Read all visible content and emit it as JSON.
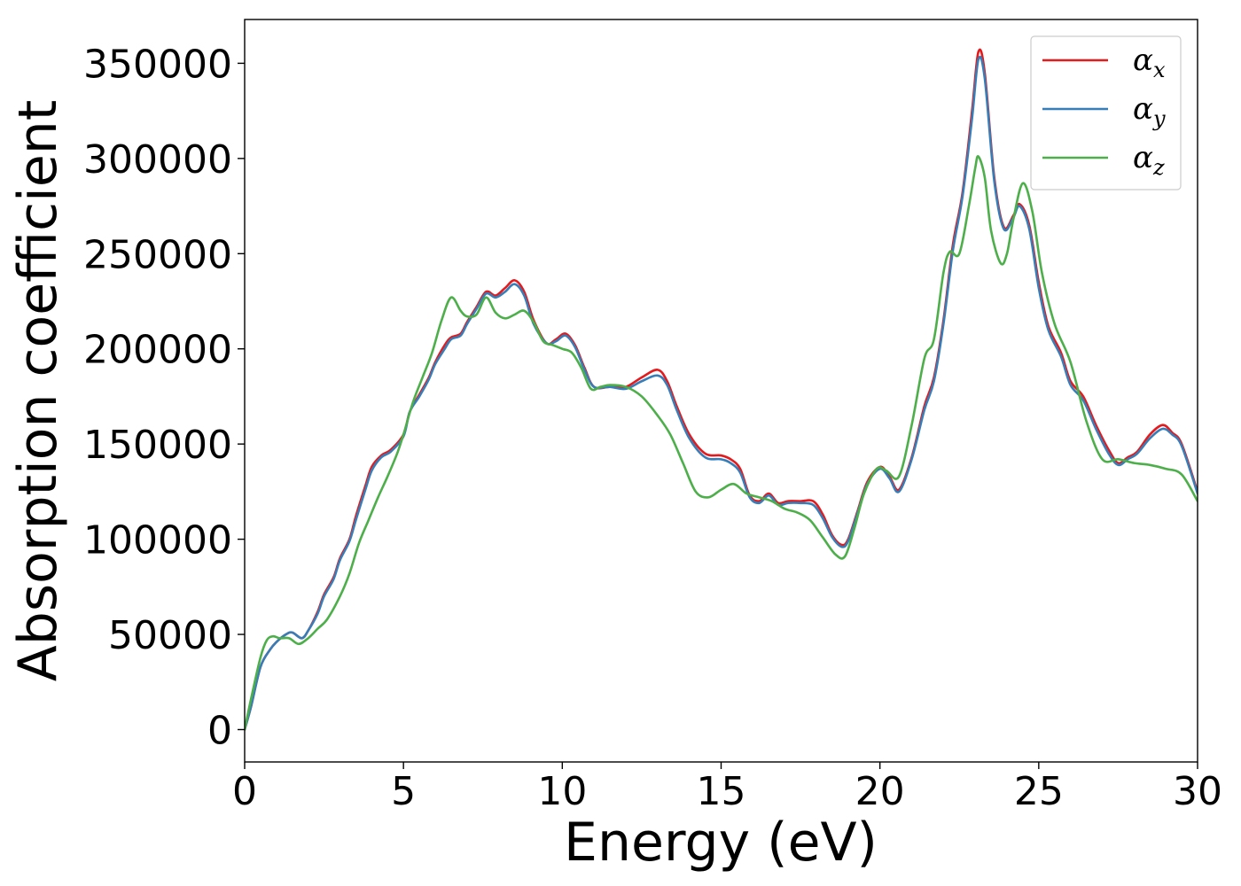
{
  "chart_data": {
    "type": "line",
    "title": "",
    "xlabel": "Energy (eV)",
    "ylabel": "Absorption coefficient",
    "xlim": [
      0,
      30
    ],
    "ylim": [
      -17000,
      373000
    ],
    "x_ticks": [
      0,
      5,
      10,
      15,
      20,
      25,
      30
    ],
    "y_ticks": [
      0,
      50000,
      100000,
      150000,
      200000,
      250000,
      300000,
      350000
    ],
    "grid": false,
    "legend_position": "top-right",
    "series": [
      {
        "name": "α",
        "subscript": "x",
        "color": "#e41a1c",
        "x": [
          0,
          0.2,
          0.5,
          0.8,
          1.0,
          1.3,
          1.5,
          1.8,
          2.0,
          2.3,
          2.5,
          2.8,
          3.0,
          3.3,
          3.5,
          3.8,
          4.0,
          4.3,
          4.6,
          5.0,
          5.2,
          5.5,
          5.8,
          6.0,
          6.3,
          6.5,
          6.8,
          7.0,
          7.3,
          7.6,
          7.9,
          8.2,
          8.5,
          8.8,
          9.1,
          9.5,
          9.8,
          10.1,
          10.4,
          10.7,
          11.0,
          11.5,
          12.0,
          12.5,
          13.0,
          13.3,
          13.6,
          14.0,
          14.5,
          15.0,
          15.3,
          15.6,
          15.9,
          16.2,
          16.5,
          16.8,
          17.1,
          17.5,
          17.9,
          18.2,
          18.5,
          18.8,
          19.0,
          19.3,
          19.6,
          20.0,
          20.3,
          20.6,
          21.0,
          21.4,
          21.7,
          22.0,
          22.3,
          22.6,
          22.9,
          23.1,
          23.3,
          23.6,
          23.9,
          24.2,
          24.4,
          24.7,
          25.0,
          25.3,
          25.7,
          26.0,
          26.4,
          26.8,
          27.2,
          27.5,
          27.8,
          28.1,
          28.5,
          28.9,
          29.2,
          29.5,
          30.0
        ],
        "y": [
          0,
          12000,
          33000,
          42000,
          46000,
          50000,
          51000,
          48000,
          52000,
          62000,
          71000,
          80000,
          90000,
          100000,
          112000,
          128000,
          138000,
          144000,
          147000,
          155000,
          167000,
          176000,
          185000,
          193000,
          202000,
          206000,
          208000,
          214000,
          222000,
          230000,
          228000,
          232000,
          236000,
          230000,
          215000,
          203000,
          205000,
          208000,
          202000,
          190000,
          180000,
          180000,
          180000,
          185000,
          189000,
          183000,
          170000,
          155000,
          145000,
          144000,
          142000,
          137000,
          123000,
          120000,
          124000,
          119000,
          120000,
          120000,
          120000,
          113000,
          102000,
          97000,
          100000,
          115000,
          130000,
          138000,
          133000,
          126000,
          143000,
          170000,
          185000,
          215000,
          255000,
          282000,
          325000,
          356000,
          345000,
          290000,
          264000,
          270000,
          276000,
          265000,
          235000,
          212000,
          198000,
          183000,
          175000,
          160000,
          147000,
          140000,
          143000,
          146000,
          155000,
          160000,
          156000,
          150000,
          125000
        ]
      },
      {
        "name": "α",
        "subscript": "y",
        "color": "#377eb8",
        "x": [
          0,
          0.2,
          0.5,
          0.8,
          1.0,
          1.3,
          1.5,
          1.8,
          2.0,
          2.3,
          2.5,
          2.8,
          3.0,
          3.3,
          3.5,
          3.8,
          4.0,
          4.3,
          4.6,
          5.0,
          5.2,
          5.5,
          5.8,
          6.0,
          6.3,
          6.5,
          6.8,
          7.0,
          7.3,
          7.6,
          7.9,
          8.2,
          8.5,
          8.8,
          9.1,
          9.5,
          9.8,
          10.1,
          10.4,
          10.7,
          11.0,
          11.5,
          12.0,
          12.5,
          13.0,
          13.3,
          13.6,
          14.0,
          14.5,
          15.0,
          15.3,
          15.6,
          15.9,
          16.2,
          16.5,
          16.8,
          17.1,
          17.5,
          17.9,
          18.2,
          18.5,
          18.8,
          19.0,
          19.3,
          19.6,
          20.0,
          20.3,
          20.6,
          21.0,
          21.4,
          21.7,
          22.0,
          22.3,
          22.6,
          22.9,
          23.1,
          23.3,
          23.6,
          23.9,
          24.2,
          24.4,
          24.7,
          25.0,
          25.3,
          25.7,
          26.0,
          26.4,
          26.8,
          27.2,
          27.5,
          27.8,
          28.1,
          28.5,
          28.9,
          29.2,
          29.5,
          30.0
        ],
        "y": [
          0,
          12000,
          33000,
          42000,
          46000,
          50000,
          51000,
          48000,
          52000,
          61000,
          70000,
          79000,
          89000,
          99000,
          110000,
          126000,
          136000,
          143000,
          146000,
          154000,
          167000,
          175000,
          184000,
          192000,
          200000,
          205000,
          207000,
          213000,
          221000,
          229000,
          227000,
          230000,
          234000,
          228000,
          213000,
          203000,
          204000,
          207000,
          201000,
          189000,
          180000,
          180000,
          179000,
          183000,
          186000,
          181000,
          168000,
          153000,
          143000,
          142000,
          140000,
          135000,
          122000,
          119000,
          123000,
          118000,
          119000,
          119000,
          118000,
          111000,
          101000,
          96000,
          99000,
          114000,
          129000,
          137000,
          132000,
          125000,
          142000,
          168000,
          183000,
          213000,
          252000,
          280000,
          321000,
          352000,
          342000,
          288000,
          263000,
          269000,
          275000,
          263000,
          232000,
          210000,
          196000,
          181000,
          173000,
          158000,
          145000,
          139000,
          142000,
          145000,
          153000,
          158000,
          155000,
          149000,
          124000
        ]
      },
      {
        "name": "α",
        "subscript": "z",
        "color": "#4daf4a",
        "x": [
          0,
          0.2,
          0.5,
          0.7,
          0.9,
          1.1,
          1.4,
          1.7,
          2.0,
          2.3,
          2.6,
          3.0,
          3.3,
          3.6,
          3.9,
          4.2,
          4.5,
          4.8,
          5.0,
          5.3,
          5.6,
          5.9,
          6.2,
          6.5,
          6.8,
          7.0,
          7.3,
          7.6,
          7.9,
          8.2,
          8.5,
          8.8,
          9.1,
          9.4,
          9.7,
          10.0,
          10.3,
          10.6,
          10.9,
          11.2,
          11.5,
          12.0,
          12.5,
          13.0,
          13.4,
          13.8,
          14.2,
          14.6,
          15.0,
          15.4,
          15.8,
          16.2,
          16.6,
          17.0,
          17.4,
          17.8,
          18.2,
          18.6,
          18.9,
          19.2,
          19.5,
          19.9,
          20.2,
          20.6,
          21.0,
          21.4,
          21.7,
          22.0,
          22.2,
          22.5,
          22.8,
          23.0,
          23.1,
          23.3,
          23.5,
          23.8,
          24.0,
          24.2,
          24.5,
          24.8,
          25.1,
          25.5,
          26.0,
          26.5,
          27.0,
          27.5,
          28.0,
          28.5,
          29.0,
          29.5,
          30.0
        ],
        "y": [
          0,
          16000,
          38000,
          47000,
          49000,
          48000,
          48000,
          45000,
          48000,
          53000,
          58000,
          70000,
          82000,
          98000,
          110000,
          122000,
          133000,
          145000,
          155000,
          172000,
          185000,
          198000,
          215000,
          227000,
          220000,
          217000,
          218000,
          227000,
          219000,
          216000,
          218000,
          220000,
          214000,
          204000,
          202000,
          200000,
          198000,
          190000,
          179000,
          180000,
          181000,
          180000,
          175000,
          165000,
          155000,
          140000,
          125000,
          122000,
          126000,
          129000,
          124000,
          122000,
          120000,
          116000,
          114000,
          110000,
          101000,
          92000,
          91000,
          106000,
          124000,
          137000,
          136000,
          133000,
          160000,
          195000,
          205000,
          240000,
          251000,
          250000,
          275000,
          295000,
          301000,
          290000,
          262000,
          245000,
          250000,
          268000,
          287000,
          272000,
          240000,
          213000,
          193000,
          162000,
          142000,
          142000,
          140000,
          139000,
          137000,
          134000,
          120000
        ]
      }
    ]
  }
}
